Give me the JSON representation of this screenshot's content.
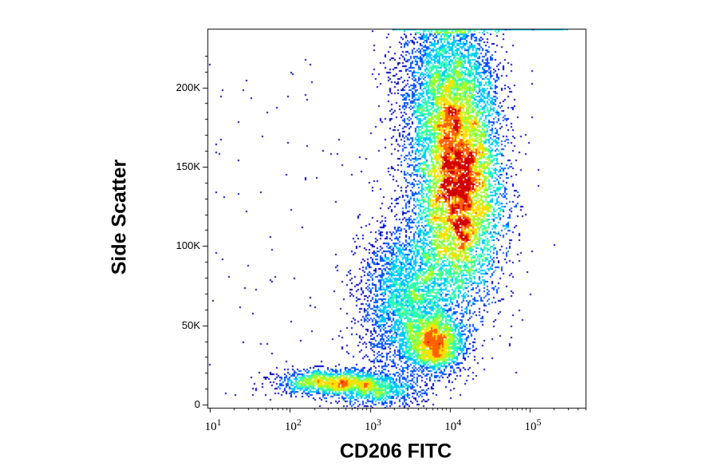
{
  "chart_data": {
    "type": "scatter",
    "subtype": "flow-cytometry-density-dot-plot",
    "xlabel": "CD206 FITC",
    "ylabel": "Side Scatter",
    "xscale": "log",
    "xlim": [
      9.3,
      500000
    ],
    "ylim": [
      -2000,
      237000
    ],
    "xticks": [
      {
        "value": 10,
        "base": "10",
        "exp": "1"
      },
      {
        "value": 100,
        "base": "10",
        "exp": "2"
      },
      {
        "value": 1000,
        "base": "10",
        "exp": "3"
      },
      {
        "value": 10000,
        "base": "10",
        "exp": "4"
      },
      {
        "value": 100000,
        "base": "10",
        "exp": "5"
      }
    ],
    "yticks": [
      {
        "value": 0,
        "label": "0"
      },
      {
        "value": 50000,
        "label": "50K"
      },
      {
        "value": 100000,
        "label": "100K"
      },
      {
        "value": 150000,
        "label": "150K"
      },
      {
        "value": 200000,
        "label": "200K"
      }
    ],
    "colormap": [
      "#0000c8",
      "#0050ff",
      "#00c8ff",
      "#30ffb0",
      "#a0ff30",
      "#ffe000",
      "#ff6000",
      "#d00000"
    ],
    "populations": [
      {
        "x_center": 13000,
        "x_sd_decades": 0.28,
        "y_center": 135000,
        "y_sd": 38000,
        "events": 14000
      },
      {
        "x_center": 9000,
        "x_sd_decades": 0.3,
        "y_center": 200000,
        "y_sd": 30000,
        "events": 4000
      },
      {
        "x_center": 3000,
        "x_sd_decades": 0.3,
        "y_center": 65000,
        "y_sd": 25000,
        "events": 3500
      },
      {
        "x_center": 6500,
        "x_sd_decades": 0.18,
        "y_center": 38000,
        "y_sd": 9000,
        "events": 1800
      },
      {
        "x_center": 350,
        "x_sd_decades": 0.35,
        "y_center": 14000,
        "y_sd": 4000,
        "events": 1500
      },
      {
        "x_center": 1200,
        "x_sd_decades": 0.3,
        "y_center": 8000,
        "y_sd": 5000,
        "events": 700
      }
    ],
    "saturated_events_at_top": {
      "x_range": [
        2000,
        300000
      ],
      "events": 600
    },
    "background_events": 120,
    "grid": false,
    "legend": "none"
  }
}
